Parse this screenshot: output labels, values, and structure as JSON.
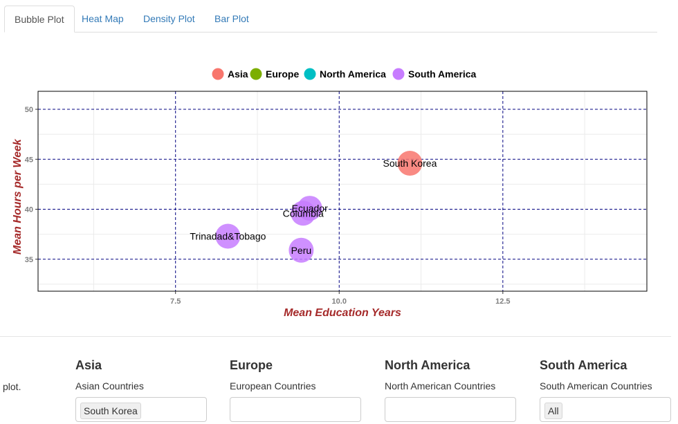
{
  "tabs": [
    {
      "label": "Bubble Plot",
      "active": true
    },
    {
      "label": "Heat Map",
      "active": false
    },
    {
      "label": "Density Plot",
      "active": false
    },
    {
      "label": "Bar Plot",
      "active": false
    }
  ],
  "chart_data": {
    "type": "scatter",
    "title": "",
    "xlabel": "Mean Education Years",
    "ylabel": "Mean Hours per Week",
    "xlim": [
      5.4,
      14.7
    ],
    "ylim": [
      31.8,
      51.8
    ],
    "x_ticks": [
      7.5,
      10.0,
      12.5
    ],
    "x_tick_labels": [
      "7.5",
      "10.0",
      "12.5"
    ],
    "y_ticks": [
      35,
      40,
      45,
      50
    ],
    "y_tick_labels": [
      "35",
      "40",
      "45",
      "50"
    ],
    "grid": true,
    "legend_position": "top",
    "legend": [
      {
        "name": "Asia",
        "color": "#f8766d"
      },
      {
        "name": "Europe",
        "color": "#7cae00"
      },
      {
        "name": "North America",
        "color": "#00bfc4"
      },
      {
        "name": "South America",
        "color": "#c77cff"
      }
    ],
    "points": [
      {
        "label": "South Korea",
        "x": 11.08,
        "y": 44.6,
        "group": "Asia"
      },
      {
        "label": "Ecuador",
        "x": 9.55,
        "y": 40.1,
        "group": "South America"
      },
      {
        "label": "Columbia",
        "x": 9.45,
        "y": 39.6,
        "group": "South America"
      },
      {
        "label": "Trinadad&Tobago",
        "x": 8.3,
        "y": 37.3,
        "group": "South America"
      },
      {
        "label": "Peru",
        "x": 9.42,
        "y": 35.9,
        "group": "South America"
      }
    ]
  },
  "filters": {
    "truncated_text": "plot.",
    "groups": [
      {
        "title": "Asia",
        "label": "Asian Countries",
        "selected": "South Korea"
      },
      {
        "title": "Europe",
        "label": "European Countries",
        "selected": ""
      },
      {
        "title": "North America",
        "label": "North American Countries",
        "selected": ""
      },
      {
        "title": "South America",
        "label": "South American Countries",
        "selected": "All"
      }
    ]
  }
}
